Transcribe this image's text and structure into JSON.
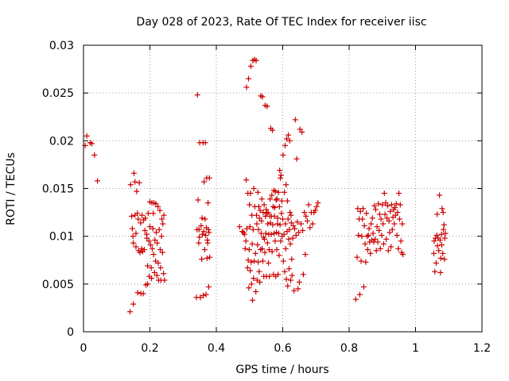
{
  "chart_data": {
    "type": "scatter",
    "title": "Day 028 of 2023, Rate Of TEC Index for receiver iisc",
    "xlabel": "GPS time / hours",
    "ylabel": "ROTI / TECUs",
    "xlim": [
      0,
      1.2
    ],
    "ylim": [
      0,
      0.03
    ],
    "x_ticks": [
      "0",
      "0.2",
      "0.4",
      "0.6",
      "0.8",
      "1",
      "1.2"
    ],
    "y_ticks": [
      "0",
      "0.005",
      "0.01",
      "0.015",
      "0.02",
      "0.025",
      "0.03"
    ],
    "grid": true,
    "marker": "+",
    "color": "#cc0000",
    "points": [
      [
        0.005,
        0.0195
      ],
      [
        0.01,
        0.0205
      ],
      [
        0.02,
        0.0198
      ],
      [
        0.025,
        0.0197
      ],
      [
        0.033,
        0.0185
      ],
      [
        0.042,
        0.0158
      ],
      [
        0.14,
        0.0021
      ],
      [
        0.142,
        0.0154
      ],
      [
        0.145,
        0.0121
      ],
      [
        0.147,
        0.0108
      ],
      [
        0.149,
        0.01
      ],
      [
        0.15,
        0.0093
      ],
      [
        0.15,
        0.0029
      ],
      [
        0.152,
        0.0166
      ],
      [
        0.155,
        0.0122
      ],
      [
        0.155,
        0.0157
      ],
      [
        0.158,
        0.0103
      ],
      [
        0.158,
        0.0089
      ],
      [
        0.16,
        0.0147
      ],
      [
        0.162,
        0.0124
      ],
      [
        0.163,
        0.0041
      ],
      [
        0.165,
        0.0118
      ],
      [
        0.166,
        0.0085
      ],
      [
        0.168,
        0.0156
      ],
      [
        0.17,
        0.0083
      ],
      [
        0.172,
        0.0114
      ],
      [
        0.173,
        0.004
      ],
      [
        0.175,
        0.0087
      ],
      [
        0.176,
        0.0122
      ],
      [
        0.178,
        0.0084
      ],
      [
        0.18,
        0.004
      ],
      [
        0.181,
        0.0117
      ],
      [
        0.183,
        0.0086
      ],
      [
        0.185,
        0.0106
      ],
      [
        0.186,
        0.0119
      ],
      [
        0.188,
        0.0049
      ],
      [
        0.19,
        0.0102
      ],
      [
        0.191,
        0.0098
      ],
      [
        0.193,
        0.0069
      ],
      [
        0.193,
        0.005
      ],
      [
        0.195,
        0.0124
      ],
      [
        0.197,
        0.0095
      ],
      [
        0.198,
        0.0058
      ],
      [
        0.2,
        0.011
      ],
      [
        0.2,
        0.0136
      ],
      [
        0.202,
        0.0091
      ],
      [
        0.204,
        0.0067
      ],
      [
        0.205,
        0.0056
      ],
      [
        0.206,
        0.0135
      ],
      [
        0.207,
        0.0087
      ],
      [
        0.209,
        0.0108
      ],
      [
        0.21,
        0.0124
      ],
      [
        0.211,
        0.0081
      ],
      [
        0.212,
        0.0135
      ],
      [
        0.214,
        0.0062
      ],
      [
        0.215,
        0.0096
      ],
      [
        0.217,
        0.0074
      ],
      [
        0.218,
        0.0134
      ],
      [
        0.219,
        0.0104
      ],
      [
        0.221,
        0.0059
      ],
      [
        0.222,
        0.0093
      ],
      [
        0.224,
        0.0131
      ],
      [
        0.225,
        0.0072
      ],
      [
        0.226,
        0.0054
      ],
      [
        0.228,
        0.0107
      ],
      [
        0.23,
        0.0127
      ],
      [
        0.231,
        0.0086
      ],
      [
        0.232,
        0.0067
      ],
      [
        0.233,
        0.0054
      ],
      [
        0.235,
        0.01
      ],
      [
        0.236,
        0.0118
      ],
      [
        0.238,
        0.0083
      ],
      [
        0.239,
        0.0113
      ],
      [
        0.241,
        0.0061
      ],
      [
        0.242,
        0.0122
      ],
      [
        0.244,
        0.0054
      ],
      [
        0.34,
        0.0036
      ],
      [
        0.342,
        0.0107
      ],
      [
        0.343,
        0.0248
      ],
      [
        0.345,
        0.0138
      ],
      [
        0.347,
        0.0093
      ],
      [
        0.348,
        0.0107
      ],
      [
        0.349,
        0.0099
      ],
      [
        0.35,
        0.0198
      ],
      [
        0.352,
        0.0036
      ],
      [
        0.354,
        0.0111
      ],
      [
        0.356,
        0.0076
      ],
      [
        0.357,
        0.0119
      ],
      [
        0.358,
        0.0102
      ],
      [
        0.36,
        0.0198
      ],
      [
        0.361,
        0.0038
      ],
      [
        0.362,
        0.0105
      ],
      [
        0.363,
        0.0157
      ],
      [
        0.365,
        0.0086
      ],
      [
        0.366,
        0.0118
      ],
      [
        0.367,
        0.0198
      ],
      [
        0.368,
        0.0101
      ],
      [
        0.369,
        0.0039
      ],
      [
        0.37,
        0.0109
      ],
      [
        0.371,
        0.0161
      ],
      [
        0.372,
        0.0077
      ],
      [
        0.373,
        0.0096
      ],
      [
        0.374,
        0.0093
      ],
      [
        0.375,
        0.0135
      ],
      [
        0.376,
        0.0107
      ],
      [
        0.377,
        0.0047
      ],
      [
        0.378,
        0.0104
      ],
      [
        0.379,
        0.0161
      ],
      [
        0.38,
        0.0078
      ],
      [
        0.47,
        0.011
      ],
      [
        0.478,
        0.0105
      ],
      [
        0.482,
        0.0104
      ],
      [
        0.485,
        0.0102
      ],
      [
        0.487,
        0.0087
      ],
      [
        0.489,
        0.0095
      ],
      [
        0.49,
        0.0159
      ],
      [
        0.491,
        0.0256
      ],
      [
        0.492,
        0.0108
      ],
      [
        0.494,
        0.0067
      ],
      [
        0.495,
        0.0145
      ],
      [
        0.496,
        0.0075
      ],
      [
        0.497,
        0.0265
      ],
      [
        0.498,
        0.0046
      ],
      [
        0.499,
        0.0086
      ],
      [
        0.5,
        0.0133
      ],
      [
        0.501,
        0.011
      ],
      [
        0.502,
        0.0064
      ],
      [
        0.503,
        0.0145
      ],
      [
        0.504,
        0.0278
      ],
      [
        0.505,
        0.0073
      ],
      [
        0.506,
        0.005
      ],
      [
        0.507,
        0.0122
      ],
      [
        0.508,
        0.0092
      ],
      [
        0.509,
        0.0033
      ],
      [
        0.51,
        0.0284
      ],
      [
        0.511,
        0.0107
      ],
      [
        0.512,
        0.0056
      ],
      [
        0.513,
        0.015
      ],
      [
        0.514,
        0.0074
      ],
      [
        0.515,
        0.0285
      ],
      [
        0.516,
        0.0131
      ],
      [
        0.518,
        0.0082
      ],
      [
        0.519,
        0.0042
      ],
      [
        0.52,
        0.0284
      ],
      [
        0.521,
        0.0122
      ],
      [
        0.522,
        0.0113
      ],
      [
        0.523,
        0.0054
      ],
      [
        0.524,
        0.0091
      ],
      [
        0.525,
        0.0146
      ],
      [
        0.526,
        0.0073
      ],
      [
        0.527,
        0.0107
      ],
      [
        0.528,
        0.0131
      ],
      [
        0.529,
        0.0063
      ],
      [
        0.53,
        0.0119
      ],
      [
        0.531,
        0.0052
      ],
      [
        0.532,
        0.0127
      ],
      [
        0.533,
        0.0086
      ],
      [
        0.534,
        0.0247
      ],
      [
        0.535,
        0.0103
      ],
      [
        0.536,
        0.0116
      ],
      [
        0.537,
        0.0139
      ],
      [
        0.538,
        0.0087
      ],
      [
        0.539,
        0.0246
      ],
      [
        0.54,
        0.0074
      ],
      [
        0.541,
        0.0125
      ],
      [
        0.542,
        0.0099
      ],
      [
        0.543,
        0.0058
      ],
      [
        0.544,
        0.0133
      ],
      [
        0.545,
        0.0097
      ],
      [
        0.546,
        0.0083
      ],
      [
        0.547,
        0.0237
      ],
      [
        0.548,
        0.0121
      ],
      [
        0.549,
        0.0103
      ],
      [
        0.55,
        0.0128
      ],
      [
        0.551,
        0.0058
      ],
      [
        0.552,
        0.0124
      ],
      [
        0.553,
        0.0236
      ],
      [
        0.554,
        0.0093
      ],
      [
        0.555,
        0.0113
      ],
      [
        0.556,
        0.0125
      ],
      [
        0.557,
        0.0072
      ],
      [
        0.558,
        0.0102
      ],
      [
        0.559,
        0.0086
      ],
      [
        0.56,
        0.0058
      ],
      [
        0.561,
        0.0121
      ],
      [
        0.562,
        0.0139
      ],
      [
        0.563,
        0.0114
      ],
      [
        0.564,
        0.0213
      ],
      [
        0.565,
        0.0102
      ],
      [
        0.566,
        0.0121
      ],
      [
        0.567,
        0.0143
      ],
      [
        0.568,
        0.0084
      ],
      [
        0.569,
        0.0211
      ],
      [
        0.57,
        0.0112
      ],
      [
        0.571,
        0.0131
      ],
      [
        0.572,
        0.006
      ],
      [
        0.573,
        0.0148
      ],
      [
        0.574,
        0.0103
      ],
      [
        0.575,
        0.0121
      ],
      [
        0.576,
        0.013
      ],
      [
        0.577,
        0.0095
      ],
      [
        0.578,
        0.0147
      ],
      [
        0.579,
        0.0058
      ],
      [
        0.58,
        0.0138
      ],
      [
        0.581,
        0.0104
      ],
      [
        0.582,
        0.0086
      ],
      [
        0.583,
        0.0139
      ],
      [
        0.584,
        0.0113
      ],
      [
        0.585,
        0.0119
      ],
      [
        0.586,
        0.006
      ],
      [
        0.587,
        0.0146
      ],
      [
        0.588,
        0.0103
      ],
      [
        0.589,
        0.008
      ],
      [
        0.59,
        0.0131
      ],
      [
        0.591,
        0.0169
      ],
      [
        0.592,
        0.0112
      ],
      [
        0.593,
        0.0161
      ],
      [
        0.594,
        0.0095
      ],
      [
        0.595,
        0.0164
      ],
      [
        0.596,
        0.0124
      ],
      [
        0.597,
        0.0137
      ],
      [
        0.598,
        0.01
      ],
      [
        0.6,
        0.0118
      ],
      [
        0.601,
        0.0185
      ],
      [
        0.602,
        0.0074
      ],
      [
        0.604,
        0.0102
      ],
      [
        0.605,
        0.0146
      ],
      [
        0.606,
        0.0063
      ],
      [
        0.607,
        0.0195
      ],
      [
        0.608,
        0.0113
      ],
      [
        0.609,
        0.0087
      ],
      [
        0.61,
        0.0154
      ],
      [
        0.611,
        0.0055
      ],
      [
        0.612,
        0.0202
      ],
      [
        0.613,
        0.0105
      ],
      [
        0.614,
        0.0137
      ],
      [
        0.615,
        0.0048
      ],
      [
        0.616,
        0.0118
      ],
      [
        0.617,
        0.0206
      ],
      [
        0.618,
        0.0097
      ],
      [
        0.619,
        0.0066
      ],
      [
        0.62,
        0.0107
      ],
      [
        0.621,
        0.02
      ],
      [
        0.622,
        0.0125
      ],
      [
        0.623,
        0.0092
      ],
      [
        0.624,
        0.0054
      ],
      [
        0.625,
        0.0122
      ],
      [
        0.626,
        0.0114
      ],
      [
        0.627,
        0.0076
      ],
      [
        0.628,
        0.0059
      ],
      [
        0.63,
        0.0098
      ],
      [
        0.632,
        0.0111
      ],
      [
        0.634,
        0.0043
      ],
      [
        0.636,
        0.0108
      ],
      [
        0.638,
        0.0222
      ],
      [
        0.64,
        0.0101
      ],
      [
        0.642,
        0.0181
      ],
      [
        0.644,
        0.0115
      ],
      [
        0.646,
        0.0045
      ],
      [
        0.648,
        0.0104
      ],
      [
        0.65,
        0.0052
      ],
      [
        0.652,
        0.0212
      ],
      [
        0.655,
        0.0113
      ],
      [
        0.658,
        0.0209
      ],
      [
        0.66,
        0.0106
      ],
      [
        0.662,
        0.006
      ],
      [
        0.665,
        0.0125
      ],
      [
        0.668,
        0.0081
      ],
      [
        0.67,
        0.0121
      ],
      [
        0.674,
        0.0116
      ],
      [
        0.678,
        0.0133
      ],
      [
        0.682,
        0.0109
      ],
      [
        0.686,
        0.0125
      ],
      [
        0.69,
        0.0113
      ],
      [
        0.694,
        0.0125
      ],
      [
        0.698,
        0.0127
      ],
      [
        0.702,
        0.0131
      ],
      [
        0.706,
        0.0135
      ],
      [
        0.82,
        0.0034
      ],
      [
        0.824,
        0.0078
      ],
      [
        0.826,
        0.0129
      ],
      [
        0.828,
        0.0101
      ],
      [
        0.83,
        0.0118
      ],
      [
        0.832,
        0.0039
      ],
      [
        0.834,
        0.0126
      ],
      [
        0.836,
        0.0074
      ],
      [
        0.838,
        0.01
      ],
      [
        0.84,
        0.0118
      ],
      [
        0.842,
        0.0129
      ],
      [
        0.844,
        0.0047
      ],
      [
        0.846,
        0.0111
      ],
      [
        0.848,
        0.0092
      ],
      [
        0.85,
        0.0073
      ],
      [
        0.852,
        0.0124
      ],
      [
        0.854,
        0.01
      ],
      [
        0.856,
        0.0086
      ],
      [
        0.858,
        0.0101
      ],
      [
        0.86,
        0.0108
      ],
      [
        0.862,
        0.0094
      ],
      [
        0.864,
        0.0082
      ],
      [
        0.866,
        0.0113
      ],
      [
        0.868,
        0.0096
      ],
      [
        0.87,
        0.0119
      ],
      [
        0.872,
        0.0103
      ],
      [
        0.874,
        0.0094
      ],
      [
        0.876,
        0.0132
      ],
      [
        0.878,
        0.0097
      ],
      [
        0.88,
        0.0128
      ],
      [
        0.882,
        0.0085
      ],
      [
        0.884,
        0.011
      ],
      [
        0.886,
        0.0094
      ],
      [
        0.888,
        0.0134
      ],
      [
        0.89,
        0.0106
      ],
      [
        0.892,
        0.0123
      ],
      [
        0.894,
        0.0087
      ],
      [
        0.896,
        0.0118
      ],
      [
        0.898,
        0.0101
      ],
      [
        0.9,
        0.0133
      ],
      [
        0.902,
        0.0113
      ],
      [
        0.904,
        0.0092
      ],
      [
        0.906,
        0.0145
      ],
      [
        0.908,
        0.0123
      ],
      [
        0.91,
        0.0135
      ],
      [
        0.912,
        0.0097
      ],
      [
        0.914,
        0.0119
      ],
      [
        0.916,
        0.0132
      ],
      [
        0.918,
        0.0085
      ],
      [
        0.92,
        0.0116
      ],
      [
        0.922,
        0.0104
      ],
      [
        0.924,
        0.0126
      ],
      [
        0.926,
        0.0089
      ],
      [
        0.928,
        0.0133
      ],
      [
        0.93,
        0.0107
      ],
      [
        0.932,
        0.012
      ],
      [
        0.934,
        0.0128
      ],
      [
        0.936,
        0.0113
      ],
      [
        0.938,
        0.013
      ],
      [
        0.94,
        0.0122
      ],
      [
        0.942,
        0.0134
      ],
      [
        0.944,
        0.0101
      ],
      [
        0.946,
        0.0125
      ],
      [
        0.948,
        0.0087
      ],
      [
        0.95,
        0.0145
      ],
      [
        0.952,
        0.0118
      ],
      [
        0.954,
        0.0133
      ],
      [
        0.956,
        0.0095
      ],
      [
        0.958,
        0.0083
      ],
      [
        0.96,
        0.0113
      ],
      [
        0.962,
        0.0081
      ],
      [
        1.055,
        0.0082
      ],
      [
        1.056,
        0.0095
      ],
      [
        1.058,
        0.0063
      ],
      [
        1.06,
        0.0098
      ],
      [
        1.062,
        0.0072
      ],
      [
        1.064,
        0.0101
      ],
      [
        1.065,
        0.0123
      ],
      [
        1.066,
        0.009
      ],
      [
        1.068,
        0.0098
      ],
      [
        1.07,
        0.0085
      ],
      [
        1.072,
        0.0143
      ],
      [
        1.074,
        0.0096
      ],
      [
        1.075,
        0.0062
      ],
      [
        1.076,
        0.0077
      ],
      [
        1.078,
        0.0102
      ],
      [
        1.079,
        0.0091
      ],
      [
        1.08,
        0.0129
      ],
      [
        1.082,
        0.0082
      ],
      [
        1.083,
        0.0125
      ],
      [
        1.084,
        0.0107
      ],
      [
        1.086,
        0.0112
      ],
      [
        1.087,
        0.0076
      ],
      [
        1.088,
        0.0098
      ],
      [
        1.09,
        0.0103
      ]
    ]
  }
}
